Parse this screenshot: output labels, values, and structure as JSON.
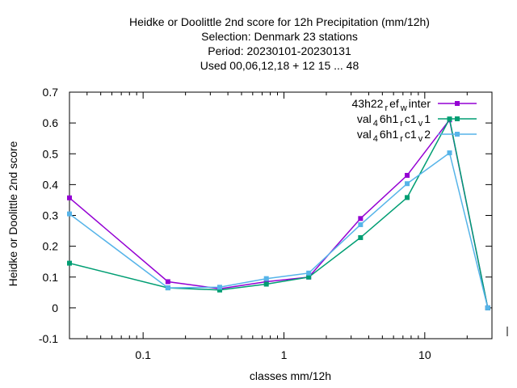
{
  "chart_data": {
    "type": "line",
    "title_lines": [
      "Heidke or Doolittle 2nd score  for 12h Precipitation (mm/12h)",
      "Selection: Denmark      23 stations",
      "Period: 20230101-20230131",
      "Used  00,06,12,18  + 12 15 ... 48"
    ],
    "xlabel": "classes mm/12h",
    "ylabel": "Heidke or Doolittle 2nd score",
    "xscale": "log",
    "xlim": [
      0.03,
      30
    ],
    "ylim": [
      -0.1,
      0.7
    ],
    "y_ticks": [
      -0.1,
      0,
      0.1,
      0.2,
      0.3,
      0.4,
      0.5,
      0.6,
      0.7
    ],
    "y_tick_labels": [
      "-0.1",
      "0",
      "0.1",
      "0.2",
      "0.3",
      "0.4",
      "0.5",
      "0.6",
      "0.7"
    ],
    "x_tick_values": [
      0.1,
      1,
      10
    ],
    "x_tick_labels": [
      "0.1",
      "1",
      "10"
    ],
    "legend_position": "top-right",
    "x": [
      0.03,
      0.15,
      0.35,
      0.75,
      1.5,
      3.5,
      7.5,
      15,
      28
    ],
    "series": [
      {
        "legend_parts": [
          "43h22",
          "r",
          "ef",
          "w",
          "inter"
        ],
        "color": "#9400d3",
        "values": [
          0.357,
          0.085,
          0.062,
          0.085,
          0.1,
          0.29,
          0.43,
          0.61,
          0.0
        ]
      },
      {
        "legend_parts": [
          "val",
          "4",
          "6h1",
          "r",
          "c1",
          "v",
          "1"
        ],
        "color": "#009e73",
        "values": [
          0.145,
          0.065,
          0.058,
          0.077,
          0.1,
          0.228,
          0.358,
          0.613,
          0.0
        ]
      },
      {
        "legend_parts": [
          "val",
          "4",
          "6h1",
          "r",
          "c1",
          "v",
          "2"
        ],
        "color": "#56b4e9",
        "values": [
          0.305,
          0.065,
          0.067,
          0.095,
          0.113,
          0.27,
          0.403,
          0.503,
          0.0
        ]
      }
    ]
  }
}
